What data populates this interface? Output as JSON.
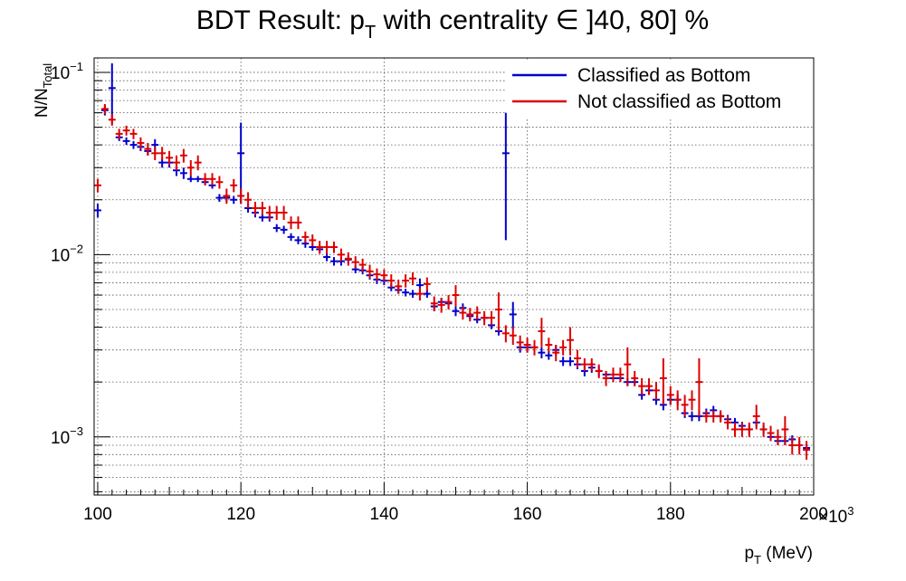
{
  "chart_data": {
    "type": "scatter",
    "title_main": "BDT Result: p",
    "title_sub": "T",
    "title_rest": " with centrality ∈ ]40, 80] %",
    "xlabel_main": "p",
    "xlabel_sub": "T",
    "xlabel_rest": " (MeV)",
    "ylabel_main": "N/N",
    "ylabel_sub": "Total",
    "x_multiplier_label": "×10",
    "x_multiplier_exp": "3",
    "xlim": [
      99.5,
      200
    ],
    "ylim": [
      0.00048,
      0.12
    ],
    "y_scale": "log",
    "grid": true,
    "legend_position": "top-right",
    "x_ticks": [
      {
        "value": 100,
        "label": "100"
      },
      {
        "value": 120,
        "label": "120"
      },
      {
        "value": 140,
        "label": "140"
      },
      {
        "value": 160,
        "label": "160"
      },
      {
        "value": 180,
        "label": "180"
      },
      {
        "value": 200,
        "label": "200"
      }
    ],
    "y_ticks": [
      {
        "value": 0.001,
        "base": "10",
        "exp": "−3"
      },
      {
        "value": 0.01,
        "base": "10",
        "exp": "−2"
      },
      {
        "value": 0.1,
        "base": "10",
        "exp": "−1"
      }
    ],
    "bin_width": 1,
    "series": [
      {
        "name": "Classified as Bottom",
        "color": "#0000cc",
        "points": [
          [
            100,
            0.0175,
            0.0015
          ],
          [
            101,
            0.062,
            0.004
          ],
          [
            102,
            0.082,
            0.03
          ],
          [
            103,
            0.044,
            0.002
          ],
          [
            104,
            0.042,
            0.002
          ],
          [
            105,
            0.04,
            0.002
          ],
          [
            106,
            0.039,
            0.002
          ],
          [
            107,
            0.037,
            0.002
          ],
          [
            108,
            0.04,
            0.003
          ],
          [
            109,
            0.032,
            0.002
          ],
          [
            110,
            0.032,
            0.002
          ],
          [
            111,
            0.029,
            0.002
          ],
          [
            112,
            0.028,
            0.002
          ],
          [
            113,
            0.026,
            0.001
          ],
          [
            114,
            0.026,
            0.001
          ],
          [
            115,
            0.025,
            0.001
          ],
          [
            116,
            0.024,
            0.001
          ],
          [
            117,
            0.0205,
            0.001
          ],
          [
            118,
            0.0205,
            0.001
          ],
          [
            119,
            0.02,
            0.001
          ],
          [
            120,
            0.036,
            0.017
          ],
          [
            121,
            0.018,
            0.001
          ],
          [
            122,
            0.017,
            0.001
          ],
          [
            123,
            0.016,
            0.0008
          ],
          [
            124,
            0.016,
            0.0008
          ],
          [
            125,
            0.014,
            0.0007
          ],
          [
            126,
            0.0137,
            0.0007
          ],
          [
            127,
            0.0125,
            0.0006
          ],
          [
            128,
            0.012,
            0.0006
          ],
          [
            129,
            0.0115,
            0.0006
          ],
          [
            130,
            0.011,
            0.0005
          ],
          [
            131,
            0.0107,
            0.0005
          ],
          [
            132,
            0.0097,
            0.0005
          ],
          [
            133,
            0.0092,
            0.0005
          ],
          [
            134,
            0.0092,
            0.0005
          ],
          [
            135,
            0.0094,
            0.0005
          ],
          [
            136,
            0.0083,
            0.0004
          ],
          [
            137,
            0.0082,
            0.0004
          ],
          [
            138,
            0.0077,
            0.0004
          ],
          [
            139,
            0.0073,
            0.0004
          ],
          [
            140,
            0.0072,
            0.0004
          ],
          [
            141,
            0.0066,
            0.0003
          ],
          [
            142,
            0.0064,
            0.0003
          ],
          [
            143,
            0.0062,
            0.0003
          ],
          [
            144,
            0.0061,
            0.0003
          ],
          [
            145,
            0.0068,
            0.0006
          ],
          [
            146,
            0.0061,
            0.0003
          ],
          [
            147,
            0.0052,
            0.0003
          ],
          [
            148,
            0.0055,
            0.0003
          ],
          [
            149,
            0.0054,
            0.0003
          ],
          [
            150,
            0.0049,
            0.0003
          ],
          [
            151,
            0.0051,
            0.0003
          ],
          [
            152,
            0.0046,
            0.0002
          ],
          [
            153,
            0.0044,
            0.0002
          ],
          [
            154,
            0.0045,
            0.0002
          ],
          [
            155,
            0.0041,
            0.0002
          ],
          [
            156,
            0.0038,
            0.0002
          ],
          [
            157,
            0.036,
            0.024
          ],
          [
            158,
            0.0047,
            0.0008
          ],
          [
            159,
            0.0031,
            0.0002
          ],
          [
            160,
            0.0031,
            0.0002
          ],
          [
            161,
            0.0031,
            0.0002
          ],
          [
            162,
            0.0029,
            0.0002
          ],
          [
            163,
            0.0028,
            0.00015
          ],
          [
            164,
            0.003,
            0.0002
          ],
          [
            165,
            0.0026,
            0.00015
          ],
          [
            166,
            0.0026,
            0.00015
          ],
          [
            167,
            0.0025,
            0.00015
          ],
          [
            168,
            0.0023,
            0.00015
          ],
          [
            169,
            0.0024,
            0.00015
          ],
          [
            170,
            0.0023,
            0.00015
          ],
          [
            171,
            0.0022,
            0.0001
          ],
          [
            172,
            0.0021,
            0.0001
          ],
          [
            173,
            0.0021,
            0.0001
          ],
          [
            174,
            0.002,
            0.0001
          ],
          [
            175,
            0.002,
            0.0001
          ],
          [
            176,
            0.0017,
            0.0001
          ],
          [
            177,
            0.0018,
            0.0001
          ],
          [
            178,
            0.0016,
            0.0001
          ],
          [
            179,
            0.0015,
            0.0001
          ],
          [
            180,
            0.0016,
            0.0001
          ],
          [
            181,
            0.0016,
            0.0001
          ],
          [
            182,
            0.00135,
            8e-05
          ],
          [
            183,
            0.0013,
            8e-05
          ],
          [
            184,
            0.0013,
            8e-05
          ],
          [
            185,
            0.00135,
            8e-05
          ],
          [
            186,
            0.0014,
            8e-05
          ],
          [
            187,
            0.0013,
            7e-05
          ],
          [
            188,
            0.00125,
            7e-05
          ],
          [
            189,
            0.0012,
            7e-05
          ],
          [
            190,
            0.00115,
            6e-05
          ],
          [
            191,
            0.0011,
            6e-05
          ],
          [
            192,
            0.0012,
            6e-05
          ],
          [
            193,
            0.0011,
            6e-05
          ],
          [
            194,
            0.001,
            5e-05
          ],
          [
            195,
            0.00095,
            5e-05
          ],
          [
            196,
            0.00095,
            5e-05
          ],
          [
            197,
            0.00097,
            5e-05
          ],
          [
            198,
            0.0009,
            5e-05
          ],
          [
            199,
            0.00087,
            4e-05
          ]
        ]
      },
      {
        "name": "Not classified as Bottom",
        "color": "#dd0000",
        "points": [
          [
            100,
            0.024,
            0.002
          ],
          [
            101,
            0.063,
            0.004
          ],
          [
            102,
            0.055,
            0.004
          ],
          [
            103,
            0.046,
            0.003
          ],
          [
            104,
            0.048,
            0.003
          ],
          [
            105,
            0.046,
            0.003
          ],
          [
            106,
            0.041,
            0.003
          ],
          [
            107,
            0.038,
            0.003
          ],
          [
            108,
            0.036,
            0.003
          ],
          [
            109,
            0.036,
            0.003
          ],
          [
            110,
            0.034,
            0.003
          ],
          [
            111,
            0.032,
            0.003
          ],
          [
            112,
            0.035,
            0.003
          ],
          [
            113,
            0.03,
            0.003
          ],
          [
            114,
            0.032,
            0.003
          ],
          [
            115,
            0.026,
            0.002
          ],
          [
            116,
            0.026,
            0.002
          ],
          [
            117,
            0.025,
            0.002
          ],
          [
            118,
            0.021,
            0.002
          ],
          [
            119,
            0.024,
            0.002
          ],
          [
            120,
            0.021,
            0.002
          ],
          [
            121,
            0.02,
            0.002
          ],
          [
            122,
            0.018,
            0.0015
          ],
          [
            123,
            0.018,
            0.0015
          ],
          [
            124,
            0.017,
            0.0015
          ],
          [
            125,
            0.017,
            0.0015
          ],
          [
            126,
            0.017,
            0.0015
          ],
          [
            127,
            0.015,
            0.0012
          ],
          [
            128,
            0.015,
            0.0012
          ],
          [
            129,
            0.0125,
            0.0009
          ],
          [
            130,
            0.012,
            0.0009
          ],
          [
            131,
            0.011,
            0.0009
          ],
          [
            132,
            0.011,
            0.0009
          ],
          [
            133,
            0.011,
            0.0008
          ],
          [
            134,
            0.01,
            0.0008
          ],
          [
            135,
            0.0095,
            0.0008
          ],
          [
            136,
            0.0091,
            0.0007
          ],
          [
            137,
            0.0088,
            0.0007
          ],
          [
            138,
            0.0081,
            0.0007
          ],
          [
            139,
            0.0078,
            0.0006
          ],
          [
            140,
            0.0077,
            0.0006
          ],
          [
            141,
            0.0072,
            0.0006
          ],
          [
            142,
            0.0067,
            0.0006
          ],
          [
            143,
            0.0072,
            0.0006
          ],
          [
            144,
            0.0074,
            0.0006
          ],
          [
            145,
            0.0061,
            0.0005
          ],
          [
            146,
            0.0069,
            0.0006
          ],
          [
            147,
            0.0054,
            0.0005
          ],
          [
            148,
            0.0053,
            0.0005
          ],
          [
            149,
            0.0055,
            0.0005
          ],
          [
            150,
            0.006,
            0.0008
          ],
          [
            151,
            0.0048,
            0.0004
          ],
          [
            152,
            0.0047,
            0.0004
          ],
          [
            153,
            0.0048,
            0.0004
          ],
          [
            154,
            0.0045,
            0.0004
          ],
          [
            155,
            0.0045,
            0.0004
          ],
          [
            156,
            0.005,
            0.0012
          ],
          [
            157,
            0.0037,
            0.0004
          ],
          [
            158,
            0.0036,
            0.0004
          ],
          [
            159,
            0.0033,
            0.0003
          ],
          [
            160,
            0.0032,
            0.0003
          ],
          [
            161,
            0.0031,
            0.0003
          ],
          [
            162,
            0.0038,
            0.0007
          ],
          [
            163,
            0.0032,
            0.0003
          ],
          [
            164,
            0.0029,
            0.0003
          ],
          [
            165,
            0.0031,
            0.0003
          ],
          [
            166,
            0.0034,
            0.0006
          ],
          [
            167,
            0.0027,
            0.0003
          ],
          [
            168,
            0.0025,
            0.0002
          ],
          [
            169,
            0.0025,
            0.0002
          ],
          [
            170,
            0.0023,
            0.0002
          ],
          [
            171,
            0.0021,
            0.0002
          ],
          [
            172,
            0.0022,
            0.0002
          ],
          [
            173,
            0.0022,
            0.0002
          ],
          [
            174,
            0.0025,
            0.0006
          ],
          [
            175,
            0.0021,
            0.0002
          ],
          [
            176,
            0.0019,
            0.0002
          ],
          [
            177,
            0.0019,
            0.0002
          ],
          [
            178,
            0.0018,
            0.0002
          ],
          [
            179,
            0.0021,
            0.0006
          ],
          [
            180,
            0.0017,
            0.0002
          ],
          [
            181,
            0.0016,
            0.0002
          ],
          [
            182,
            0.0015,
            0.0002
          ],
          [
            183,
            0.0016,
            0.0002
          ],
          [
            184,
            0.002,
            0.0007
          ],
          [
            185,
            0.0013,
            0.0001
          ],
          [
            186,
            0.0013,
            0.0001
          ],
          [
            187,
            0.0013,
            0.0001
          ],
          [
            188,
            0.0012,
            0.0001
          ],
          [
            189,
            0.0011,
            0.0001
          ],
          [
            190,
            0.0011,
            0.0001
          ],
          [
            191,
            0.0011,
            0.0001
          ],
          [
            192,
            0.0013,
            0.0002
          ],
          [
            193,
            0.0011,
            0.0001
          ],
          [
            194,
            0.00105,
            0.0001
          ],
          [
            195,
            0.001,
            0.0001
          ],
          [
            196,
            0.0011,
            0.0002
          ],
          [
            197,
            0.0009,
            0.0001
          ],
          [
            198,
            0.0009,
            0.0001
          ],
          [
            199,
            0.00085,
            0.0001
          ]
        ]
      }
    ]
  }
}
